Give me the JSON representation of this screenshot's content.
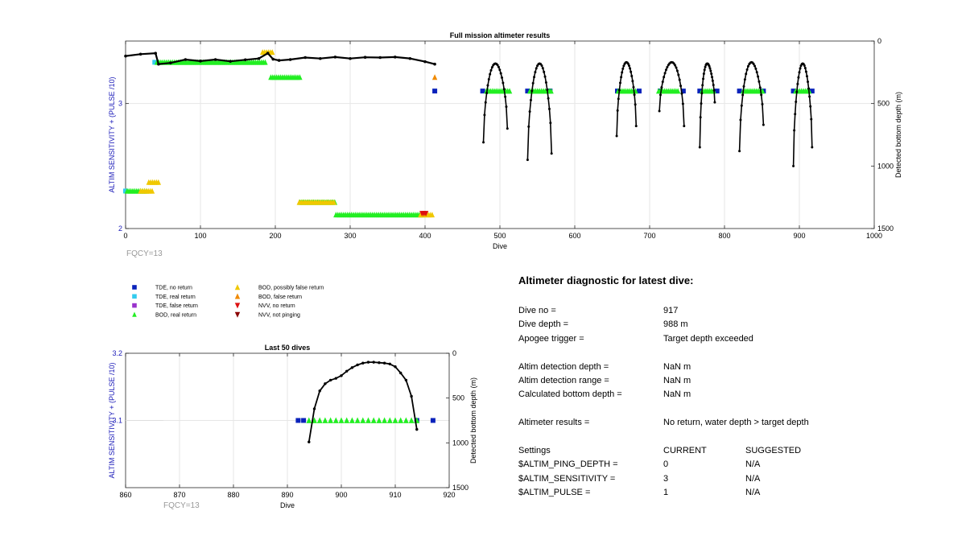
{
  "chart_data": [
    {
      "type": "scatter",
      "title": "Full mission altimeter results",
      "xlabel": "Dive",
      "ylabel": "ALTIM SENSITIVITY + (PULSE /10)",
      "ylabel_right": "Detected bottom depth (m)",
      "xlim": [
        0,
        1000
      ],
      "ylim": [
        2,
        3.5
      ],
      "ylim_right": [
        0,
        1500
      ],
      "y_right_reversed": true,
      "xticks": [
        "0",
        "100",
        "200",
        "300",
        "400",
        "500",
        "600",
        "700",
        "800",
        "900",
        "1000"
      ],
      "yticks": [
        "2",
        "3"
      ],
      "yticks_right": [
        "0",
        "500",
        "1000",
        "1500"
      ],
      "grid": true,
      "footnote": "FQCY=13",
      "settings_series": [
        {
          "name": "TDE, real return",
          "color": "#33ccee",
          "marker": "square",
          "x": [
            0,
            39
          ],
          "y": [
            2.3,
            3.33
          ]
        },
        {
          "name": "TDE, no return",
          "color": "#0a22bb",
          "marker": "square",
          "x": [
            413,
            477,
            537,
            567,
            657,
            686,
            714,
            745,
            767,
            790,
            820,
            852,
            892,
            917
          ],
          "y": [
            3.1,
            3.1,
            3.1,
            3.1,
            3.1,
            3.1,
            3.1,
            3.1,
            3.1,
            3.1,
            3.1,
            3.1,
            3.1,
            3.1
          ]
        },
        {
          "name": "BOD, real return",
          "color": "#22ee22",
          "marker": "triangle-up",
          "segments": [
            [
              2,
              30,
              2.3
            ],
            [
              42,
              189,
              3.33
            ],
            [
              194,
              233,
              3.21
            ],
            [
              233,
              281,
              2.21
            ],
            [
              281,
              398,
              2.11
            ],
            [
              482,
              515,
              3.1
            ],
            [
              540,
              570,
              3.1
            ],
            [
              658,
              683,
              3.1
            ],
            [
              712,
              740,
              3.1
            ],
            [
              770,
              786,
              3.1
            ],
            [
              825,
              853,
              3.1
            ],
            [
              895,
              915,
              3.1
            ]
          ]
        },
        {
          "name": "BOD, possibly false return",
          "color": "#f0c800",
          "marker": "triangle-up",
          "segments": [
            [
              20,
              38,
              2.3
            ],
            [
              31,
              45,
              2.37
            ],
            [
              183,
              196,
              3.41
            ],
            [
              232,
              280,
              2.21
            ],
            [
              394,
              412,
              2.11
            ]
          ]
        },
        {
          "name": "BOD, false return",
          "color": "#f08a00",
          "marker": "triangle-up",
          "segments": [
            [
              413,
              413,
              3.21
            ]
          ]
        },
        {
          "name": "NVV, no return",
          "color": "#dd1111",
          "marker": "triangle-down",
          "segments": [
            [
              396,
              402,
              2.12
            ]
          ]
        },
        {
          "name": "NVV, not pinging",
          "color": "#8b0000",
          "marker": "triangle-down",
          "segments": []
        }
      ],
      "depth_series": {
        "name": "Detected bottom depth",
        "color": "#000000",
        "flat": [
          [
            0,
            120
          ],
          [
            20,
            105
          ],
          [
            40,
            98
          ],
          [
            44,
            185
          ],
          [
            60,
            175
          ],
          [
            80,
            148
          ],
          [
            100,
            160
          ],
          [
            120,
            148
          ],
          [
            140,
            162
          ],
          [
            160,
            150
          ],
          [
            178,
            140
          ],
          [
            190,
            98
          ],
          [
            197,
            145
          ],
          [
            205,
            155
          ],
          [
            220,
            148
          ],
          [
            240,
            132
          ],
          [
            260,
            140
          ],
          [
            280,
            128
          ],
          [
            300,
            140
          ],
          [
            320,
            130
          ],
          [
            340,
            132
          ],
          [
            360,
            128
          ],
          [
            380,
            140
          ],
          [
            400,
            165
          ],
          [
            413,
            185
          ]
        ],
        "arcs": [
          [
            478,
            510,
            180,
            810,
            700
          ],
          [
            537,
            569,
            180,
            950,
            900
          ],
          [
            656,
            682,
            170,
            760,
            680
          ],
          [
            713,
            746,
            170,
            560,
            680
          ],
          [
            767,
            787,
            180,
            850,
            490
          ],
          [
            820,
            852,
            170,
            880,
            670
          ],
          [
            892,
            917,
            180,
            1000,
            850
          ]
        ]
      }
    },
    {
      "type": "scatter",
      "title": "Last 50 dives",
      "xlabel": "Dive",
      "ylabel": "ALTIM SENSITIVITY + (PULSE /10)",
      "ylabel_right": "Detected bottom depth (m)",
      "xlim": [
        860,
        920
      ],
      "ylim": [
        3.0,
        3.2
      ],
      "ylim_right": [
        0,
        1500
      ],
      "y_right_reversed": true,
      "xticks": [
        "860",
        "870",
        "880",
        "890",
        "900",
        "910",
        "920"
      ],
      "yticks": [
        "3.1",
        "3.2"
      ],
      "yticks_right": [
        "0",
        "500",
        "1000",
        "1500"
      ],
      "grid": true,
      "footnote": "FQCY=13",
      "tde_no_return_x": [
        892,
        893,
        914,
        917
      ],
      "tde_no_return_y": 3.1,
      "bod_real_return_x": [
        894,
        895,
        896,
        897,
        898,
        899,
        900,
        901,
        902,
        903,
        904,
        905,
        906,
        907,
        908,
        909,
        910,
        911,
        912,
        913,
        914
      ],
      "bod_real_return_y": 3.1,
      "depth_x": [
        894,
        895,
        896,
        897,
        898,
        899,
        900,
        901,
        902,
        903,
        904,
        905,
        906,
        907,
        908,
        909,
        910,
        911,
        912,
        913,
        914
      ],
      "depth_y": [
        990,
        620,
        420,
        340,
        300,
        280,
        250,
        200,
        160,
        130,
        110,
        100,
        100,
        105,
        110,
        120,
        150,
        220,
        300,
        480,
        850
      ]
    }
  ],
  "legend": {
    "col1": [
      {
        "label": "TDE, no return",
        "color": "#0a22bb",
        "shape": "square"
      },
      {
        "label": "TDE, real return",
        "color": "#33ccee",
        "shape": "square"
      },
      {
        "label": "TDE, false return",
        "color": "#9933cc",
        "shape": "square"
      },
      {
        "label": "BOD, real return",
        "color": "#22ee22",
        "shape": "triangle-up"
      }
    ],
    "col2": [
      {
        "label": "BOD, possibly false return",
        "color": "#f0c800",
        "shape": "triangle-up"
      },
      {
        "label": "BOD, false return",
        "color": "#f08a00",
        "shape": "triangle-up"
      },
      {
        "label": "NVV, no return",
        "color": "#dd1111",
        "shape": "triangle-down"
      },
      {
        "label": "NVV, not pinging",
        "color": "#8b0000",
        "shape": "triangle-down"
      }
    ]
  },
  "diagnostic": {
    "title": "Altimeter diagnostic for latest dive:",
    "dive_no_label": "Dive no =",
    "dive_no": "917",
    "dive_depth_label": "Dive depth =",
    "dive_depth": "988 m",
    "apogee_label": "Apogee trigger =",
    "apogee": "Target depth exceeded",
    "altim_det_depth_label": "Altim detection depth =",
    "altim_det_depth": "NaN m",
    "altim_det_range_label": "Altim detection range =",
    "altim_det_range": "NaN m",
    "calc_bottom_label": "Calculated bottom depth =",
    "calc_bottom": "NaN m",
    "results_label": "Altimeter results =",
    "results": "No return, water depth > target depth",
    "settings_label": "Settings",
    "current_label": "CURRENT",
    "suggested_label": "SUGGESTED",
    "ping_depth_label": "$ALTIM_PING_DEPTH =",
    "ping_depth_current": "0",
    "ping_depth_suggested": "N/A",
    "sensitivity_label": "$ALTIM_SENSITIVITY =",
    "sensitivity_current": "3",
    "sensitivity_suggested": "N/A",
    "pulse_label": "$ALTIM_PULSE =",
    "pulse_current": "1",
    "pulse_suggested": "N/A"
  },
  "colors": {
    "axis_label_blue": "#1a1ab8",
    "footnote_gray": "#999999",
    "grid": "#e6e6e6"
  }
}
